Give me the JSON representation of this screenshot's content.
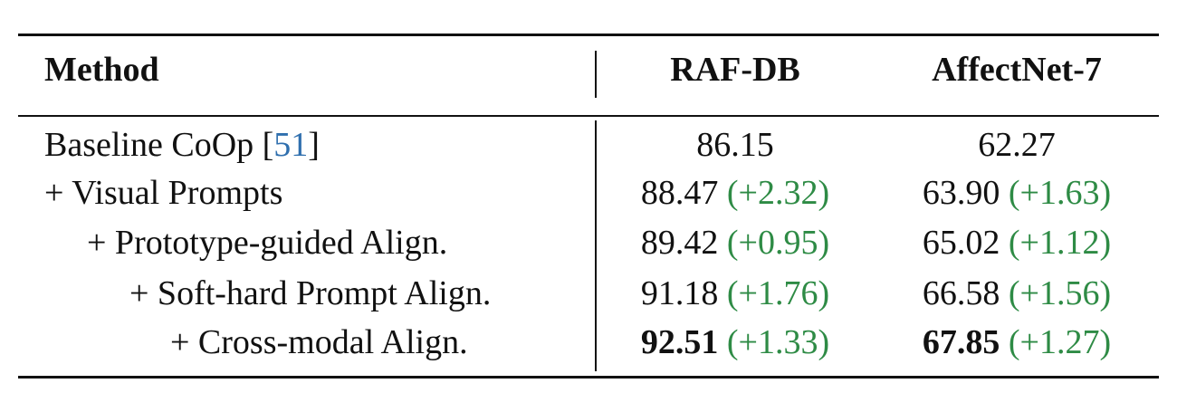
{
  "table": {
    "headers": {
      "method": "Method",
      "raf_db": "RAF-DB",
      "affectnet": "AffectNet-7"
    },
    "rows": [
      {
        "method_prefix": "Baseline CoOp [",
        "method_ref": "51",
        "method_suffix": "]",
        "raf_value": "86.15",
        "raf_delta": "",
        "aff_value": "62.27",
        "aff_delta": ""
      },
      {
        "method": "+ Visual Prompts",
        "raf_value": "88.47",
        "raf_delta": "(+2.32)",
        "aff_value": "63.90",
        "aff_delta": "(+1.63)"
      },
      {
        "method": "+ Prototype-guided Align.",
        "raf_value": "89.42",
        "raf_delta": "(+0.95)",
        "aff_value": "65.02",
        "aff_delta": "(+1.12)"
      },
      {
        "method": "+ Soft-hard Prompt Align.",
        "raf_value": "91.18",
        "raf_delta": "(+1.76)",
        "aff_value": "66.58",
        "aff_delta": "(+1.56)"
      },
      {
        "method": "+ Cross-modal Align.",
        "raf_value": "92.51",
        "raf_delta": "(+1.33)",
        "aff_value": "67.85",
        "aff_delta": "(+1.27)"
      }
    ]
  },
  "colors": {
    "delta": "#2e8b45",
    "reference_link": "#2f6fae",
    "text": "#111111"
  }
}
